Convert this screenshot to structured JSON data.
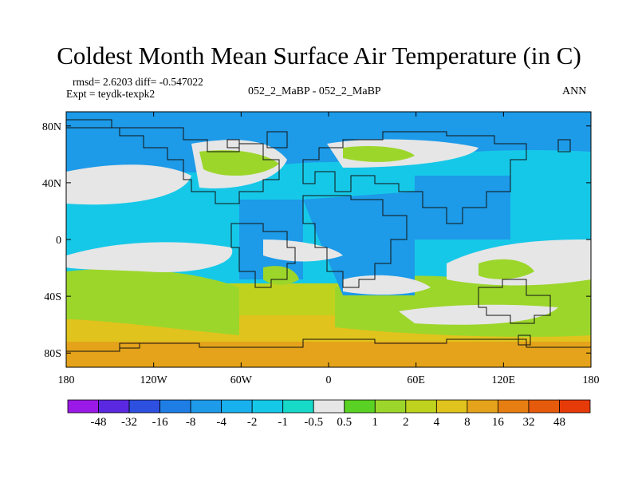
{
  "title": "Coldest Month Mean Surface Air Temperature (in C)",
  "stats": {
    "line1": "rmsd= 2.6203 diff= -0.547022",
    "line2": "Expt = teydk-texpk2"
  },
  "center_label": "052_2_MaBP - 052_2_MaBP",
  "period_label": "ANN",
  "axes": {
    "lat_ticks": [
      {
        "value": 80,
        "label": "80N"
      },
      {
        "value": 40,
        "label": "40N"
      },
      {
        "value": 0,
        "label": "0"
      },
      {
        "value": -40,
        "label": "40S"
      },
      {
        "value": -80,
        "label": "80S"
      }
    ],
    "lon_ticks": [
      {
        "value": -180,
        "label": "180"
      },
      {
        "value": -120,
        "label": "120W"
      },
      {
        "value": -60,
        "label": "60W"
      },
      {
        "value": 0,
        "label": "0"
      },
      {
        "value": 60,
        "label": "60E"
      },
      {
        "value": 120,
        "label": "120E"
      },
      {
        "value": 180,
        "label": "180"
      }
    ],
    "lon_range": [
      -180,
      180
    ],
    "lat_range": [
      -90,
      90
    ]
  },
  "colorbar": {
    "colors": [
      "#9b19e6",
      "#5a28e0",
      "#2e50e0",
      "#1e7ee6",
      "#1d9ae8",
      "#19b0ee",
      "#16c8e8",
      "#17d9c8",
      "#e6e6e6",
      "#5ad223",
      "#9cd62b",
      "#bfd21e",
      "#e0c31c",
      "#e4a31a",
      "#e67e12",
      "#e65a0c",
      "#e63a08"
    ],
    "labels": [
      "-48",
      "-32",
      "-16",
      "-8",
      "-4",
      "-2",
      "-1",
      "-0.5",
      "0.5",
      "1",
      "2",
      "4",
      "8",
      "16",
      "32",
      "48"
    ]
  },
  "field_colors": {
    "white": "#e6e6e6",
    "cyan": "#16c8e8",
    "blue": "#1d9ae8",
    "teal": "#17d9c8",
    "green": "#9cd62b",
    "yellowgreen": "#bfd21e",
    "yellow": "#e0c31c",
    "orange": "#e4a31a"
  }
}
